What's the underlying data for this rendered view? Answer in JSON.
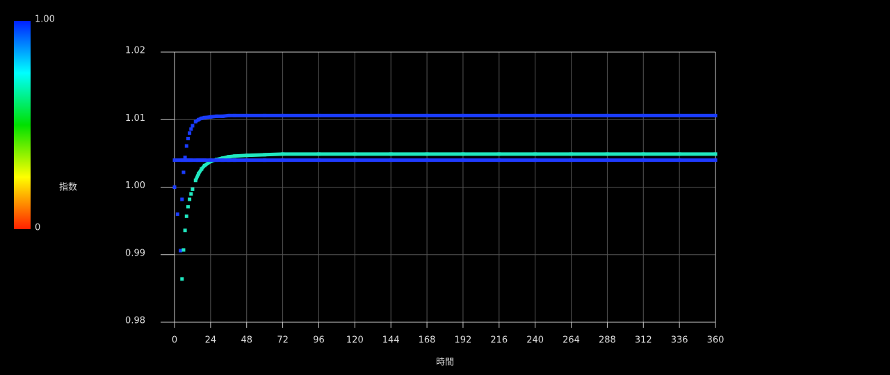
{
  "chart_data": {
    "type": "scatter",
    "x_label": "時間",
    "xlim": [
      0,
      360
    ],
    "xticks": [
      0,
      24,
      48,
      72,
      96,
      120,
      144,
      168,
      192,
      216,
      240,
      264,
      288,
      312,
      336,
      360
    ],
    "ylim": [
      0.98,
      1.02
    ],
    "yticks": [
      0.98,
      0.99,
      {
        "value": 1,
        "label": "1.00"
      },
      1.01,
      1.02
    ],
    "grid": true,
    "x": [
      0,
      2,
      4,
      5,
      6,
      7,
      8,
      9,
      10,
      11,
      12,
      14,
      16,
      18,
      20,
      24,
      28,
      32,
      36,
      40,
      48,
      60,
      72,
      96,
      120,
      144,
      168,
      192,
      216,
      240,
      264,
      288,
      312,
      336,
      360
    ],
    "series": [
      {
        "color": "#1a3cff",
        "values": [
          1.0,
          0.996,
          0.9906,
          0.9982,
          1.0022,
          1.0044,
          1.0061,
          1.0072,
          1.008,
          1.0086,
          1.0091,
          1.0097,
          1.01,
          1.0102,
          1.0103,
          1.0104,
          1.0105,
          1.0105,
          1.0106,
          1.0106,
          1.0106,
          1.0106,
          1.0106,
          1.0106,
          1.0106,
          1.0106,
          1.0106,
          1.0106,
          1.0106,
          1.0106,
          1.0106,
          1.0106,
          1.0106,
          1.0106,
          1.0106
        ]
      },
      {
        "color": "#20e8c0",
        "values": [
          null,
          null,
          null,
          0.9864,
          0.9907,
          0.9936,
          0.9957,
          0.9971,
          0.9982,
          0.999,
          0.9997,
          1.001,
          1.002,
          1.0027,
          1.0032,
          1.0038,
          1.0041,
          1.0043,
          1.0045,
          1.0046,
          1.0047,
          1.0048,
          1.0049,
          1.0049,
          1.0049,
          1.0049,
          1.0049,
          1.0049,
          1.0049,
          1.0049,
          1.0049,
          1.0049,
          1.0049,
          1.0049,
          1.0049
        ]
      },
      {
        "color": "#1f3bff",
        "values": [
          1.004,
          1.004,
          1.004,
          1.004,
          1.004,
          1.004,
          1.004,
          1.004,
          1.004,
          1.004,
          1.004,
          1.004,
          1.004,
          1.004,
          1.004,
          1.004,
          1.004,
          1.004,
          1.004,
          1.004,
          1.004,
          1.004,
          1.004,
          1.004,
          1.004,
          1.004,
          1.004,
          1.004,
          1.004,
          1.004,
          1.004,
          1.004,
          1.004,
          1.004,
          1.004
        ]
      }
    ],
    "colorbar": {
      "label": "指数",
      "ticks": [
        {
          "value": 1,
          "label": "1.00"
        },
        0
      ],
      "range": [
        0,
        1
      ]
    }
  }
}
